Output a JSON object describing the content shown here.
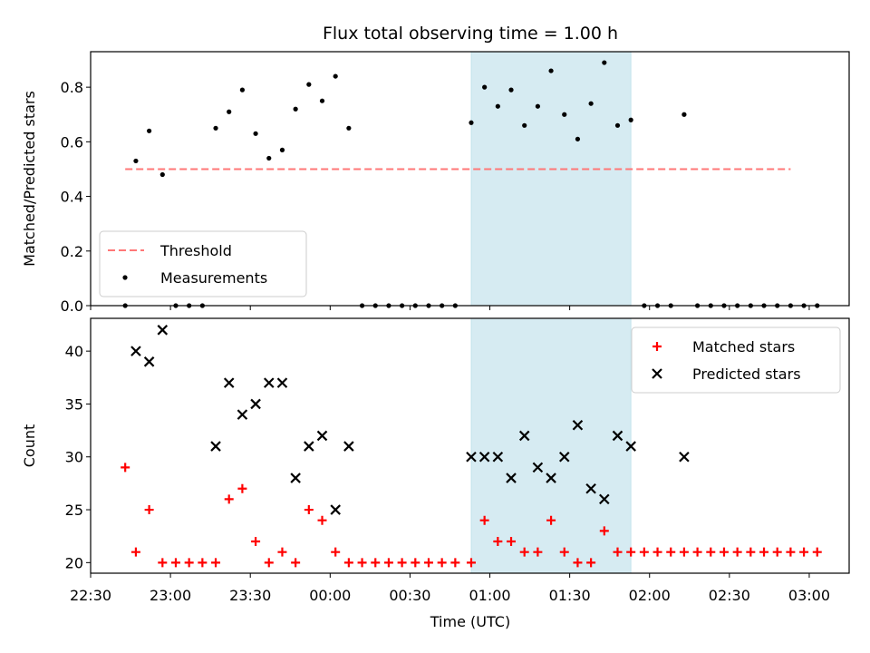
{
  "chart_data": {
    "title": "Flux total observing time = 1.00 h",
    "xlabel": "Time (UTC)",
    "x_range": [
      "22:30",
      "03:15"
    ],
    "x_ticks": [
      "22:30",
      "23:00",
      "23:30",
      "00:00",
      "00:30",
      "01:00",
      "01:30",
      "02:00",
      "02:30",
      "03:00"
    ],
    "highlight_span": {
      "start": "00:53",
      "end": "01:53",
      "color": "#add8e6"
    },
    "panels": [
      {
        "type": "scatter",
        "ylabel": "Matched/Predicted stars",
        "ylim": [
          0,
          0.93
        ],
        "y_ticks": [
          "0.0",
          "0.2",
          "0.4",
          "0.6",
          "0.8"
        ],
        "threshold": {
          "name": "Threshold",
          "value": 0.5,
          "x_start": "22:43",
          "x_end": "02:53",
          "color": "#ff7777"
        },
        "legend_position": "lower-left",
        "series": [
          {
            "name": "Measurements",
            "color": "#000000",
            "points": [
              [
                "22:43",
                0.0
              ],
              [
                "22:47",
                0.53
              ],
              [
                "22:52",
                0.64
              ],
              [
                "22:57",
                0.48
              ],
              [
                "23:02",
                0.0
              ],
              [
                "23:07",
                0.0
              ],
              [
                "23:12",
                0.0
              ],
              [
                "23:17",
                0.65
              ],
              [
                "23:22",
                0.71
              ],
              [
                "23:27",
                0.79
              ],
              [
                "23:32",
                0.63
              ],
              [
                "23:37",
                0.54
              ],
              [
                "23:42",
                0.57
              ],
              [
                "23:47",
                0.72
              ],
              [
                "23:52",
                0.81
              ],
              [
                "23:57",
                0.75
              ],
              [
                "00:02",
                0.84
              ],
              [
                "00:07",
                0.65
              ],
              [
                "00:12",
                0.0
              ],
              [
                "00:17",
                0.0
              ],
              [
                "00:22",
                0.0
              ],
              [
                "00:27",
                0.0
              ],
              [
                "00:32",
                0.0
              ],
              [
                "00:37",
                0.0
              ],
              [
                "00:42",
                0.0
              ],
              [
                "00:47",
                0.0
              ],
              [
                "00:53",
                0.67
              ],
              [
                "00:58",
                0.8
              ],
              [
                "01:03",
                0.73
              ],
              [
                "01:08",
                0.79
              ],
              [
                "01:13",
                0.66
              ],
              [
                "01:18",
                0.73
              ],
              [
                "01:23",
                0.86
              ],
              [
                "01:28",
                0.7
              ],
              [
                "01:33",
                0.61
              ],
              [
                "01:38",
                0.74
              ],
              [
                "01:43",
                0.89
              ],
              [
                "01:48",
                0.66
              ],
              [
                "01:53",
                0.68
              ],
              [
                "01:58",
                0.0
              ],
              [
                "02:03",
                0.0
              ],
              [
                "02:08",
                0.0
              ],
              [
                "02:13",
                0.7
              ],
              [
                "02:18",
                0.0
              ],
              [
                "02:23",
                0.0
              ],
              [
                "02:28",
                0.0
              ],
              [
                "02:33",
                0.0
              ],
              [
                "02:38",
                0.0
              ],
              [
                "02:43",
                0.0
              ],
              [
                "02:48",
                0.0
              ],
              [
                "02:53",
                0.0
              ],
              [
                "02:58",
                0.0
              ],
              [
                "03:03",
                0.0
              ]
            ]
          }
        ]
      },
      {
        "type": "scatter",
        "ylabel": "Count",
        "ylim": [
          19,
          43.1
        ],
        "y_ticks": [
          "20",
          "25",
          "30",
          "35",
          "40"
        ],
        "legend_position": "upper-right",
        "series": [
          {
            "name": "Matched stars",
            "marker": "plus",
            "color": "#ff0000",
            "points": [
              [
                "22:43",
                29
              ],
              [
                "22:47",
                21
              ],
              [
                "22:52",
                25
              ],
              [
                "22:57",
                20
              ],
              [
                "23:02",
                20
              ],
              [
                "23:07",
                20
              ],
              [
                "23:12",
                20
              ],
              [
                "23:17",
                20
              ],
              [
                "23:22",
                26
              ],
              [
                "23:27",
                27
              ],
              [
                "23:32",
                22
              ],
              [
                "23:37",
                20
              ],
              [
                "23:42",
                21
              ],
              [
                "23:47",
                20
              ],
              [
                "23:52",
                25
              ],
              [
                "23:57",
                24
              ],
              [
                "00:02",
                21
              ],
              [
                "00:07",
                20
              ],
              [
                "00:12",
                20
              ],
              [
                "00:17",
                20
              ],
              [
                "00:22",
                20
              ],
              [
                "00:27",
                20
              ],
              [
                "00:32",
                20
              ],
              [
                "00:37",
                20
              ],
              [
                "00:42",
                20
              ],
              [
                "00:47",
                20
              ],
              [
                "00:53",
                20
              ],
              [
                "00:58",
                24
              ],
              [
                "01:03",
                22
              ],
              [
                "01:08",
                22
              ],
              [
                "01:13",
                21
              ],
              [
                "01:18",
                21
              ],
              [
                "01:23",
                24
              ],
              [
                "01:28",
                21
              ],
              [
                "01:33",
                20
              ],
              [
                "01:38",
                20
              ],
              [
                "01:43",
                23
              ],
              [
                "01:48",
                21
              ],
              [
                "01:53",
                21
              ],
              [
                "01:58",
                21
              ],
              [
                "02:03",
                21
              ],
              [
                "02:08",
                21
              ],
              [
                "02:13",
                21
              ],
              [
                "02:18",
                21
              ],
              [
                "02:23",
                21
              ],
              [
                "02:28",
                21
              ],
              [
                "02:33",
                21
              ],
              [
                "02:38",
                21
              ],
              [
                "02:43",
                21
              ],
              [
                "02:48",
                21
              ],
              [
                "02:53",
                21
              ],
              [
                "02:58",
                21
              ],
              [
                "03:03",
                21
              ]
            ]
          },
          {
            "name": "Predicted stars",
            "marker": "x",
            "color": "#000000",
            "points": [
              [
                "22:47",
                40
              ],
              [
                "22:52",
                39
              ],
              [
                "22:57",
                42
              ],
              [
                "23:17",
                31
              ],
              [
                "23:22",
                37
              ],
              [
                "23:27",
                34
              ],
              [
                "23:32",
                35
              ],
              [
                "23:37",
                37
              ],
              [
                "23:42",
                37
              ],
              [
                "23:47",
                28
              ],
              [
                "23:52",
                31
              ],
              [
                "23:57",
                32
              ],
              [
                "00:02",
                25
              ],
              [
                "00:07",
                31
              ],
              [
                "00:53",
                30
              ],
              [
                "00:58",
                30
              ],
              [
                "01:03",
                30
              ],
              [
                "01:08",
                28
              ],
              [
                "01:13",
                32
              ],
              [
                "01:18",
                29
              ],
              [
                "01:23",
                28
              ],
              [
                "01:28",
                30
              ],
              [
                "01:33",
                33
              ],
              [
                "01:38",
                27
              ],
              [
                "01:43",
                26
              ],
              [
                "01:48",
                32
              ],
              [
                "01:53",
                31
              ],
              [
                "02:13",
                30
              ]
            ]
          }
        ]
      }
    ]
  }
}
